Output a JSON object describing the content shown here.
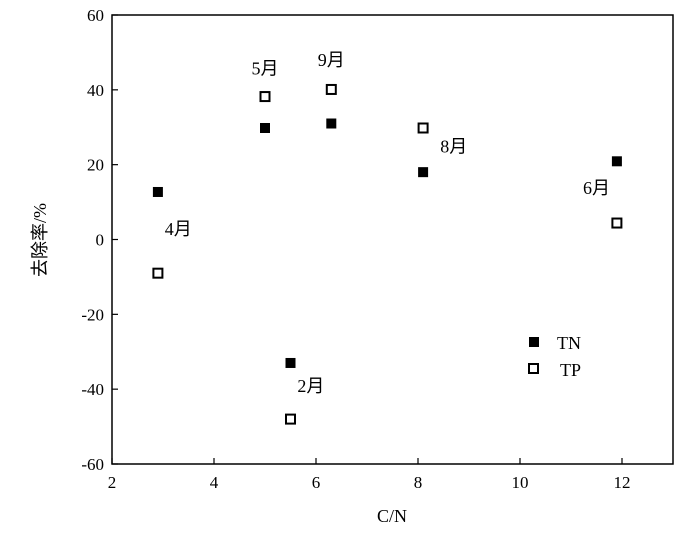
{
  "chart_data": {
    "type": "scatter",
    "xlabel": "C/N",
    "ylabel": "去除率/%",
    "xlim": [
      2,
      13
    ],
    "ylim": [
      -60,
      60
    ],
    "xticks": [
      2,
      4,
      6,
      8,
      10,
      12
    ],
    "yticks": [
      60,
      40,
      20,
      0,
      -20,
      -40,
      -60
    ],
    "legend_position": "bottom-right",
    "series": [
      {
        "name": "TN",
        "marker": "filled-square",
        "points": [
          {
            "x": 2.9,
            "y": 12.7
          },
          {
            "x": 5.0,
            "y": 29.8
          },
          {
            "x": 6.3,
            "y": 31.0
          },
          {
            "x": 8.1,
            "y": 18.0
          },
          {
            "x": 11.9,
            "y": 20.9
          },
          {
            "x": 5.5,
            "y": -33.0
          }
        ]
      },
      {
        "name": "TP",
        "marker": "open-square",
        "points": [
          {
            "x": 2.9,
            "y": -9.0
          },
          {
            "x": 5.0,
            "y": 38.2
          },
          {
            "x": 6.3,
            "y": 40.1
          },
          {
            "x": 8.1,
            "y": 29.8
          },
          {
            "x": 11.9,
            "y": 4.4
          },
          {
            "x": 5.5,
            "y": -48.0
          }
        ]
      }
    ],
    "annotations": [
      {
        "text": "4月",
        "x": 3.3,
        "y": 1.2
      },
      {
        "text": "5月",
        "x": 5.0,
        "y": 44.1
      },
      {
        "text": "9月",
        "x": 6.3,
        "y": 46.4
      },
      {
        "text": "8月",
        "x": 8.7,
        "y": 23.3
      },
      {
        "text": "6月",
        "x": 11.5,
        "y": 12.2
      },
      {
        "text": "2月",
        "x": 5.9,
        "y": -40.8
      }
    ]
  }
}
